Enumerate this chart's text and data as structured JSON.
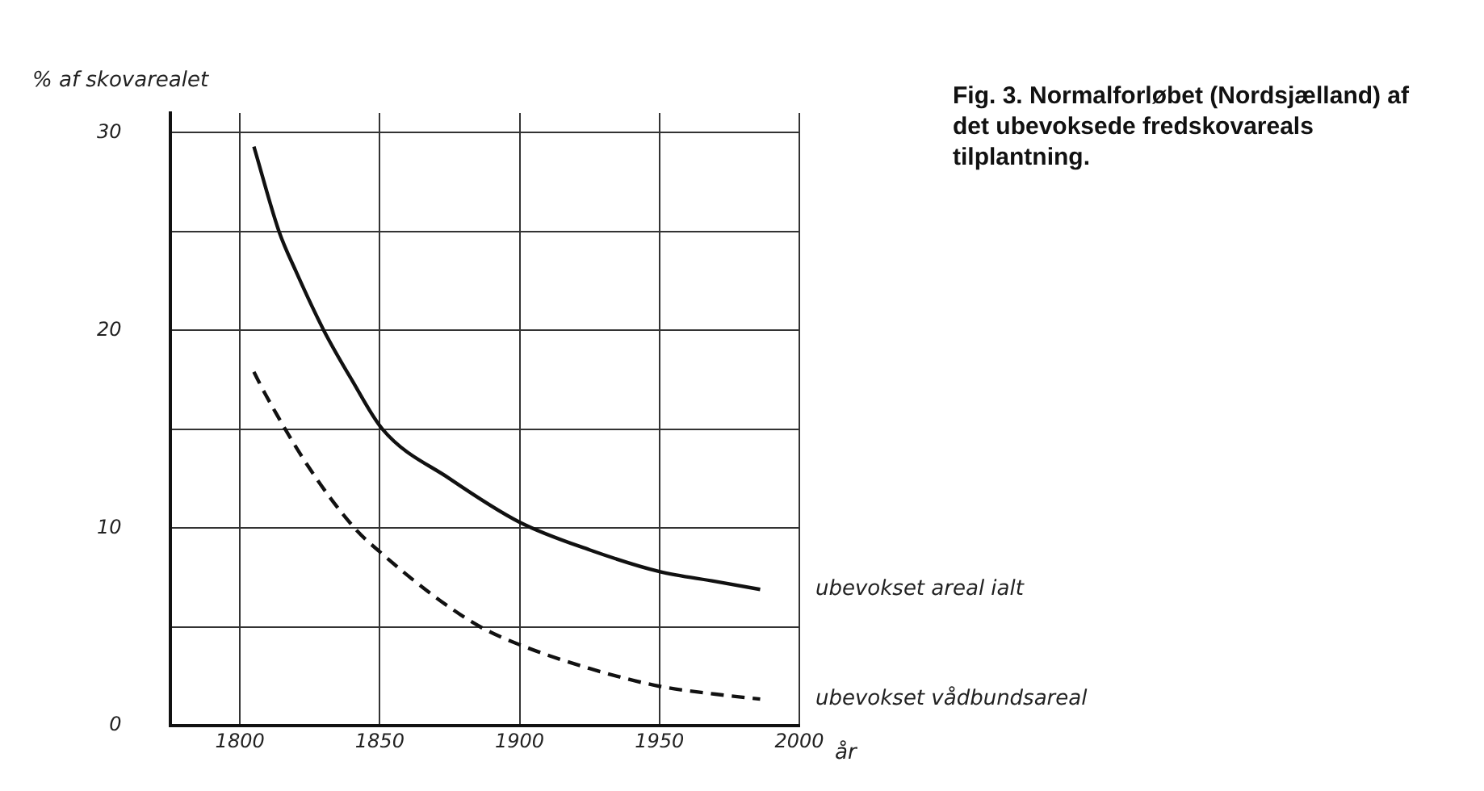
{
  "chart_data": {
    "type": "line",
    "title": "Fig. 3. Normalforløbet (Nordsjælland) af det ubevoksede fredskovareals tilplantning.",
    "xlabel": "år",
    "ylabel": "% af skovarealet",
    "series": [
      {
        "name": "ubevokset areal ialt",
        "color": "#111111",
        "line_style": "solid",
        "x": [
          1805,
          1814,
          1820,
          1830,
          1840,
          1851,
          1875,
          1900,
          1925,
          1950,
          1970,
          1986
        ],
        "values": [
          29.3,
          25,
          23,
          20,
          17.5,
          15,
          12.5,
          10.3,
          8.9,
          7.8,
          7.3,
          6.9
        ]
      },
      {
        "name": "ubevokset vådbundsareal",
        "color": "#111111",
        "line_style": "dashed",
        "x": [
          1805,
          1809,
          1825,
          1841,
          1850,
          1870,
          1886,
          1900,
          1925,
          1950,
          1970,
          1986
        ],
        "values": [
          17.9,
          16.8,
          13,
          10,
          8.8,
          6.5,
          5,
          4.1,
          2.9,
          2.0,
          1.6,
          1.35
        ]
      }
    ],
    "xlim": [
      1775,
      2000
    ],
    "xticks": [
      1800,
      1850,
      1900,
      1950,
      2000
    ],
    "ylim": [
      0,
      31
    ],
    "yticks": [
      0,
      {
        "value": 5,
        "label": null
      },
      10,
      {
        "value": 15,
        "label": null
      },
      20,
      {
        "value": 25,
        "label": null
      },
      30
    ],
    "grid": true,
    "legend": false,
    "marker": "none"
  }
}
